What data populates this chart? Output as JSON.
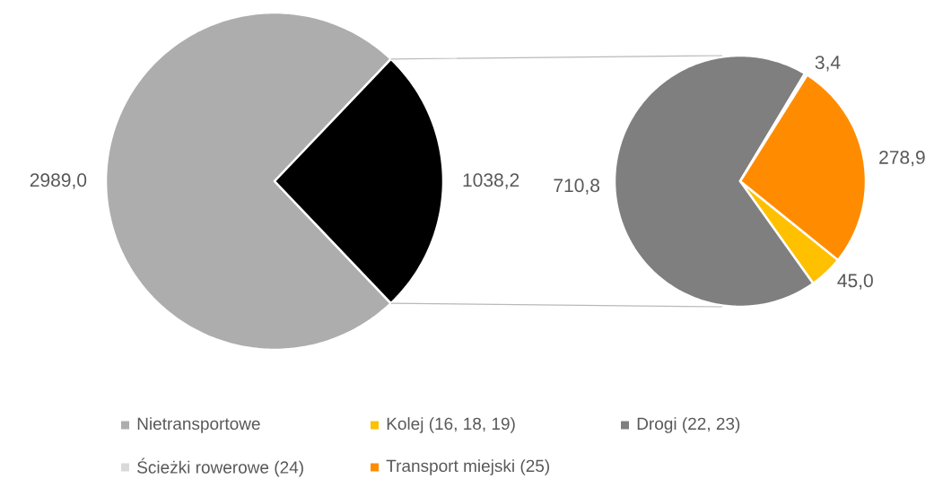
{
  "chart_data": [
    {
      "type": "pie",
      "categories": [
        "Nietransportowe",
        null
      ],
      "values": [
        2989.0,
        1038.2
      ],
      "colors": [
        "#adadad",
        "#000000"
      ],
      "value_labels": [
        "2989,0",
        "1038,2"
      ],
      "legend": "bottom"
    },
    {
      "type": "pie",
      "categories": [
        "Kolej (16, 18, 19)",
        "Drogi (22, 23)",
        "Ścieżki rowerowe (24)",
        "Transport miejski (25)"
      ],
      "values": [
        45.0,
        710.8,
        3.4,
        278.9
      ],
      "colors": [
        "#ffc000",
        "#7f7f7f",
        "#d9d9d9",
        "#ff8c00"
      ],
      "value_labels": [
        "45,0",
        "710,8",
        "3,4",
        "278,9"
      ],
      "legend": "bottom"
    }
  ]
}
